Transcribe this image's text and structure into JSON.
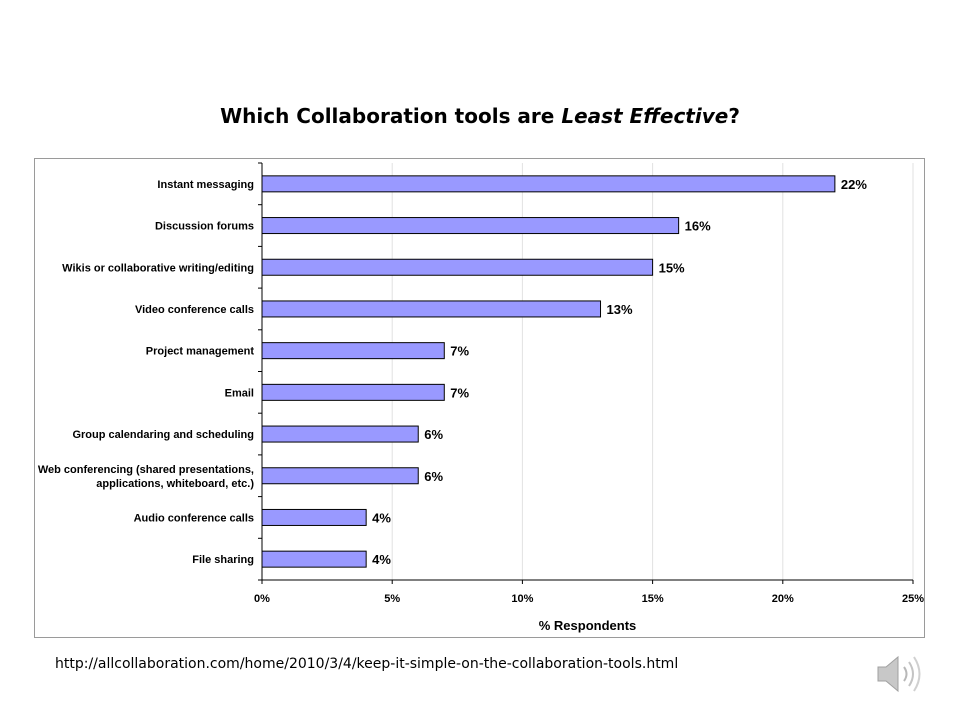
{
  "slide": {
    "title_prefix": "Which Collaboration tools are ",
    "title_emphasis": "Least Effective",
    "title_suffix": "?",
    "source_url": "http://allcollaboration.com/home/2010/3/4/keep-it-simple-on-the-collaboration-tools.html",
    "speaker_icon": "speaker-icon"
  },
  "chart_data": {
    "type": "bar",
    "orientation": "horizontal",
    "categories": [
      "Instant messaging",
      "Discussion forums",
      "Wikis or collaborative writing/editing",
      "Video conference calls",
      "Project management",
      "Email",
      "Group calendaring and scheduling",
      "Web conferencing (shared presentations,\napplications, whiteboard, etc.)",
      "Audio conference calls",
      "File sharing"
    ],
    "values": [
      22,
      16,
      15,
      13,
      7,
      7,
      6,
      6,
      4,
      4
    ],
    "data_labels": [
      "22%",
      "16%",
      "15%",
      "13%",
      "7%",
      "7%",
      "6%",
      "6%",
      "4%",
      "4%"
    ],
    "xlabel": "% Respondents",
    "xlim": [
      0,
      25
    ],
    "xticks": [
      0,
      5,
      10,
      15,
      20,
      25
    ],
    "xtick_labels": [
      "0%",
      "5%",
      "10%",
      "15%",
      "20%",
      "25%"
    ],
    "bar_color": "#9999ff",
    "bar_edge_color": "#000000",
    "grid": true
  }
}
